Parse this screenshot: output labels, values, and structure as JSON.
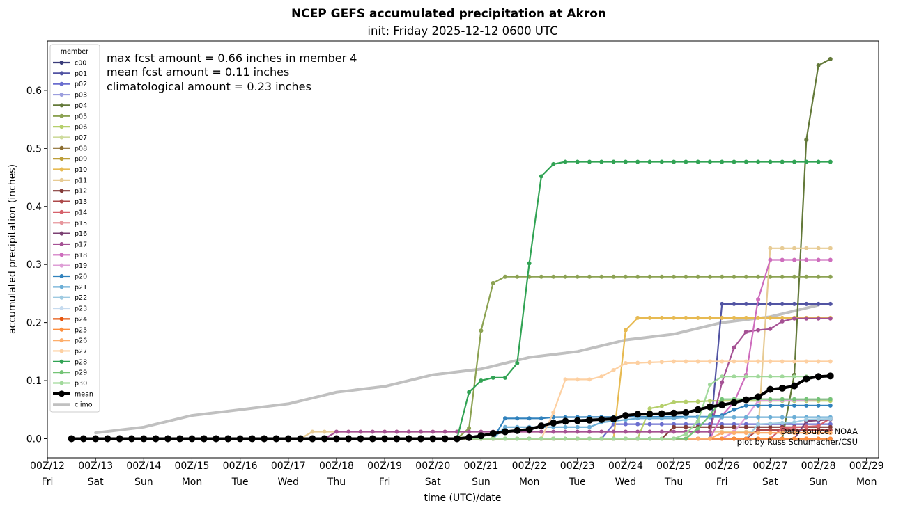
{
  "chart_data": {
    "type": "line",
    "title": "NCEP GEFS accumulated precipitation at Akron",
    "subtitle": "init: Friday 2025-12-12 0600 UTC",
    "xlabel": "time (UTC)/date",
    "ylabel": "accumulated precipitation (inches)",
    "ylim": [
      -0.033,
      0.685
    ],
    "yticks": [
      "0.0",
      "0.1",
      "0.2",
      "0.3",
      "0.4",
      "0.5",
      "0.6"
    ],
    "xlim_days": [
      12,
      29.25
    ],
    "xticks": [
      {
        "top": "00Z/12",
        "bottom": "Fri"
      },
      {
        "top": "00Z/13",
        "bottom": "Sat"
      },
      {
        "top": "00Z/14",
        "bottom": "Sun"
      },
      {
        "top": "00Z/15",
        "bottom": "Mon"
      },
      {
        "top": "00Z/16",
        "bottom": "Tue"
      },
      {
        "top": "00Z/17",
        "bottom": "Wed"
      },
      {
        "top": "00Z/18",
        "bottom": "Thu"
      },
      {
        "top": "00Z/19",
        "bottom": "Fri"
      },
      {
        "top": "00Z/20",
        "bottom": "Sat"
      },
      {
        "top": "00Z/21",
        "bottom": "Sun"
      },
      {
        "top": "00Z/22",
        "bottom": "Mon"
      },
      {
        "top": "00Z/23",
        "bottom": "Tue"
      },
      {
        "top": "00Z/24",
        "bottom": "Wed"
      },
      {
        "top": "00Z/25",
        "bottom": "Thu"
      },
      {
        "top": "00Z/26",
        "bottom": "Fri"
      },
      {
        "top": "00Z/27",
        "bottom": "Sat"
      },
      {
        "top": "00Z/28",
        "bottom": "Sun"
      },
      {
        "top": "00Z/29",
        "bottom": "Mon"
      }
    ],
    "grid": false,
    "legend": {
      "title": "member",
      "placement": "upper-left"
    },
    "annotations": {
      "max": "max fcst amount = 0.66 inches in member 4",
      "mean": "mean fcst amount = 0.11 inches",
      "climo": "climatological amount = 0.23 inches"
    },
    "credits": {
      "source": "Data source: NOAA",
      "author": "plot by Russ Schumacher/CSU"
    },
    "x_start": "2025-12-12 12Z",
    "x_step_hours": 6,
    "series": [
      {
        "name": "c00",
        "color": "#393b79",
        "values": []
      },
      {
        "name": "p01",
        "color": "#5254a3",
        "values": [
          [
            25.75,
            0
          ],
          [
            26,
            0.232
          ],
          [
            28.25,
            0.232
          ]
        ]
      },
      {
        "name": "p02",
        "color": "#6b6ecf",
        "values": [
          [
            23.5,
            0
          ],
          [
            23.75,
            0.025
          ],
          [
            28.25,
            0.025
          ]
        ]
      },
      {
        "name": "p03",
        "color": "#9c9ede",
        "values": []
      },
      {
        "name": "p04",
        "color": "#637939",
        "values": [
          [
            27.25,
            0
          ],
          [
            27.5,
            0.11
          ],
          [
            27.75,
            0.515
          ],
          [
            28,
            0.643
          ],
          [
            28.25,
            0.654
          ]
        ]
      },
      {
        "name": "p05",
        "color": "#8ca252",
        "values": [
          [
            20.75,
            0.018
          ],
          [
            21,
            0.186
          ],
          [
            21.25,
            0.268
          ],
          [
            21.5,
            0.279
          ],
          [
            28.25,
            0.279
          ]
        ]
      },
      {
        "name": "p06",
        "color": "#b5cf6b",
        "values": [
          [
            24.25,
            0
          ],
          [
            24.5,
            0.052
          ],
          [
            24.75,
            0.056
          ],
          [
            25,
            0.063
          ],
          [
            25.5,
            0.064
          ],
          [
            25.75,
            0.065
          ],
          [
            28.25,
            0.065
          ]
        ]
      },
      {
        "name": "p07",
        "color": "#cedb9c",
        "values": []
      },
      {
        "name": "p08",
        "color": "#8c6d31",
        "values": []
      },
      {
        "name": "p09",
        "color": "#bd9e39",
        "values": []
      },
      {
        "name": "p10",
        "color": "#e7ba52",
        "values": [
          [
            23.75,
            0
          ],
          [
            24,
            0.187
          ],
          [
            24.25,
            0.208
          ],
          [
            28.25,
            0.208
          ]
        ]
      },
      {
        "name": "p11",
        "color": "#e7cb94",
        "values": [
          [
            17.25,
            0
          ],
          [
            17.5,
            0.012
          ],
          [
            26.75,
            0.012
          ],
          [
            27,
            0.328
          ],
          [
            28.25,
            0.328
          ]
        ]
      },
      {
        "name": "p12",
        "color": "#843c39",
        "values": [
          [
            24.75,
            0
          ],
          [
            25,
            0.02
          ],
          [
            28.25,
            0.02
          ]
        ]
      },
      {
        "name": "p13",
        "color": "#ad494a",
        "values": [
          [
            26.5,
            0
          ],
          [
            26.75,
            0.015
          ],
          [
            28.25,
            0.015
          ]
        ]
      },
      {
        "name": "p14",
        "color": "#d6616b",
        "values": [
          [
            27,
            0
          ],
          [
            27.25,
            0.018
          ],
          [
            28,
            0.022
          ],
          [
            28.25,
            0.035
          ]
        ]
      },
      {
        "name": "p15",
        "color": "#e7969c",
        "values": []
      },
      {
        "name": "p16",
        "color": "#7b4173",
        "values": [
          [
            27.5,
            0
          ],
          [
            27.75,
            0.03
          ],
          [
            28.25,
            0.033
          ]
        ]
      },
      {
        "name": "p17",
        "color": "#a55194",
        "values": [
          [
            17.75,
            0
          ],
          [
            18,
            0.012
          ],
          [
            25.75,
            0.012
          ],
          [
            26,
            0.097
          ],
          [
            26.25,
            0.157
          ],
          [
            26.5,
            0.184
          ],
          [
            26.75,
            0.187
          ],
          [
            27,
            0.189
          ],
          [
            27.25,
            0.202
          ],
          [
            27.5,
            0.207
          ],
          [
            28.25,
            0.207
          ]
        ]
      },
      {
        "name": "p18",
        "color": "#ce6dbd",
        "values": [
          [
            25.75,
            0
          ],
          [
            26,
            0.04
          ],
          [
            26.25,
            0.063
          ],
          [
            26.5,
            0.11
          ],
          [
            26.75,
            0.24
          ],
          [
            27,
            0.308
          ],
          [
            28.25,
            0.308
          ]
        ]
      },
      {
        "name": "p19",
        "color": "#de9ed6",
        "values": [
          [
            26,
            0
          ],
          [
            26.25,
            0.012
          ],
          [
            26.5,
            0.037
          ],
          [
            26.75,
            0.065
          ],
          [
            28.25,
            0.068
          ]
        ]
      },
      {
        "name": "p20",
        "color": "#3182bd",
        "values": [
          [
            21.25,
            0
          ],
          [
            21.5,
            0.035
          ],
          [
            22.25,
            0.035
          ],
          [
            22.5,
            0.037
          ],
          [
            25.75,
            0.038
          ],
          [
            26,
            0.04
          ],
          [
            26.25,
            0.05
          ],
          [
            26.5,
            0.057
          ],
          [
            28.25,
            0.057
          ]
        ]
      },
      {
        "name": "p21",
        "color": "#6baed6",
        "values": [
          [
            21.25,
            0
          ],
          [
            21.5,
            0.02
          ],
          [
            23.25,
            0.02
          ],
          [
            23.5,
            0.028
          ],
          [
            24.25,
            0.035
          ],
          [
            25,
            0.035
          ],
          [
            25.25,
            0.037
          ],
          [
            28.25,
            0.037
          ]
        ]
      },
      {
        "name": "p22",
        "color": "#9ecae1",
        "values": [
          [
            26.5,
            0
          ],
          [
            26.75,
            0.025
          ],
          [
            27.5,
            0.028
          ],
          [
            27.75,
            0.033
          ],
          [
            28.25,
            0.034
          ]
        ]
      },
      {
        "name": "p23",
        "color": "#c6dbef",
        "values": []
      },
      {
        "name": "p24",
        "color": "#e6550d",
        "values": []
      },
      {
        "name": "p25",
        "color": "#fd8d3c",
        "values": []
      },
      {
        "name": "p26",
        "color": "#fdae6b",
        "values": [
          [
            25.75,
            0
          ],
          [
            26,
            0.01
          ],
          [
            28.25,
            0.01
          ]
        ]
      },
      {
        "name": "p27",
        "color": "#fdd0a2",
        "values": [
          [
            22.25,
            0
          ],
          [
            22.5,
            0.045
          ],
          [
            22.75,
            0.102
          ],
          [
            23.25,
            0.102
          ],
          [
            23.5,
            0.107
          ],
          [
            23.75,
            0.118
          ],
          [
            24,
            0.13
          ],
          [
            24.75,
            0.132
          ],
          [
            25,
            0.133
          ],
          [
            28.25,
            0.133
          ]
        ]
      },
      {
        "name": "p28",
        "color": "#31a354",
        "values": [
          [
            20.5,
            0
          ],
          [
            20.75,
            0.08
          ],
          [
            21,
            0.1
          ],
          [
            21.25,
            0.105
          ],
          [
            21.5,
            0.105
          ],
          [
            21.75,
            0.13
          ],
          [
            22,
            0.302
          ],
          [
            22.25,
            0.452
          ],
          [
            22.5,
            0.473
          ],
          [
            22.75,
            0.477
          ],
          [
            28.25,
            0.477
          ]
        ]
      },
      {
        "name": "p29",
        "color": "#74c476",
        "values": [
          [
            25.25,
            0
          ],
          [
            25.5,
            0.018
          ],
          [
            25.75,
            0.04
          ],
          [
            26,
            0.068
          ],
          [
            28.25,
            0.068
          ]
        ]
      },
      {
        "name": "p30",
        "color": "#a1d99b",
        "values": [
          [
            25,
            0
          ],
          [
            25.25,
            0.008
          ],
          [
            25.5,
            0.03
          ],
          [
            25.75,
            0.093
          ],
          [
            26,
            0.107
          ],
          [
            28.25,
            0.107
          ]
        ]
      },
      {
        "name": "mean",
        "color": "#000000",
        "values": [
          [
            20.75,
            0.002
          ],
          [
            21,
            0.005
          ],
          [
            21.25,
            0.009
          ],
          [
            21.5,
            0.012
          ],
          [
            21.75,
            0.014
          ],
          [
            22,
            0.016
          ],
          [
            22.25,
            0.022
          ],
          [
            22.5,
            0.027
          ],
          [
            22.75,
            0.03
          ],
          [
            23,
            0.031
          ],
          [
            23.25,
            0.032
          ],
          [
            23.5,
            0.033
          ],
          [
            23.75,
            0.034
          ],
          [
            24,
            0.04
          ],
          [
            24.25,
            0.042
          ],
          [
            24.75,
            0.043
          ],
          [
            25.25,
            0.045
          ],
          [
            25.5,
            0.05
          ],
          [
            25.75,
            0.055
          ],
          [
            26,
            0.058
          ],
          [
            26.25,
            0.062
          ],
          [
            26.5,
            0.067
          ],
          [
            26.75,
            0.072
          ],
          [
            27,
            0.085
          ],
          [
            27.25,
            0.087
          ],
          [
            27.5,
            0.091
          ],
          [
            27.75,
            0.103
          ],
          [
            28,
            0.107
          ],
          [
            28.25,
            0.108
          ]
        ]
      },
      {
        "name": "climo",
        "color": "#c0c0c0",
        "values": [
          [
            13,
            0.01
          ],
          [
            14,
            0.02
          ],
          [
            15,
            0.04
          ],
          [
            16,
            0.05
          ],
          [
            17,
            0.06
          ],
          [
            18,
            0.08
          ],
          [
            19,
            0.09
          ],
          [
            20,
            0.11
          ],
          [
            21,
            0.12
          ],
          [
            22,
            0.14
          ],
          [
            23,
            0.15
          ],
          [
            24,
            0.17
          ],
          [
            25,
            0.18
          ],
          [
            26,
            0.2
          ],
          [
            27,
            0.21
          ],
          [
            28,
            0.23
          ]
        ]
      }
    ]
  }
}
